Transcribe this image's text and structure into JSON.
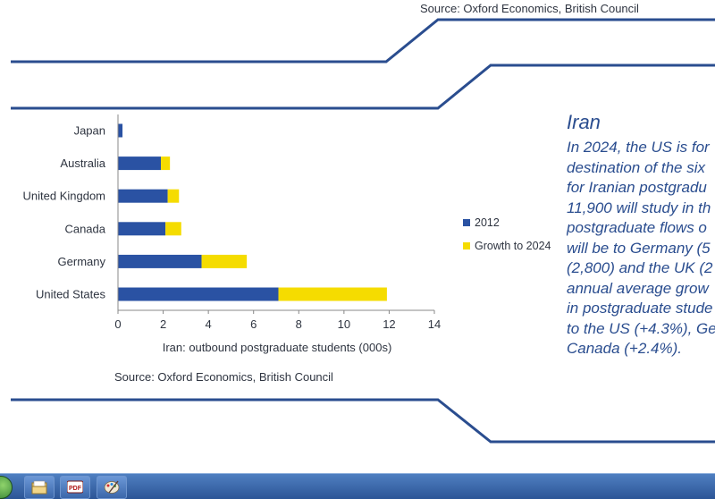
{
  "top_source": "Source: Oxford Economics, British Council",
  "bottom_source": "Source: Oxford Economics, British Council",
  "panel": {
    "heading": "Iran",
    "lines": [
      "In 2024, the US is for",
      "destination of the six",
      "for Iranian postgradu",
      "11,900 will study in th",
      "postgraduate flows o",
      "will be to Germany (5",
      "(2,800) and the UK (2",
      "annual average grow",
      "in postgraduate stude",
      "to the US (+4.3%), Ge",
      "Canada (+2.4%)."
    ]
  },
  "colors": {
    "series_2012": "#2a52a3",
    "series_growth": "#f5dc00",
    "frame_line": "#2a4d8f",
    "axis": "#888888",
    "text": "#2e3440"
  },
  "chart_data": {
    "type": "bar",
    "orientation": "horizontal",
    "stacked": true,
    "categories": [
      "Japan",
      "Australia",
      "United Kingdom",
      "Canada",
      "Germany",
      "United States"
    ],
    "series": [
      {
        "name": "2012",
        "values": [
          0.2,
          1.9,
          2.2,
          2.1,
          3.7,
          7.1
        ]
      },
      {
        "name": "Growth to 2024",
        "values": [
          0,
          0.4,
          0.5,
          0.7,
          2.0,
          4.8
        ]
      }
    ],
    "xlabel": "Iran: outbound postgraduate students (000s)",
    "xlim": [
      0,
      14
    ],
    "xticks": [
      0,
      2,
      4,
      6,
      8,
      10,
      12,
      14
    ],
    "grid": false,
    "legend_position": "right"
  },
  "taskbar": {
    "icons": [
      "start-orb",
      "folder-icon",
      "pdf-icon",
      "paint-icon"
    ],
    "pdf_label": "PDF"
  }
}
